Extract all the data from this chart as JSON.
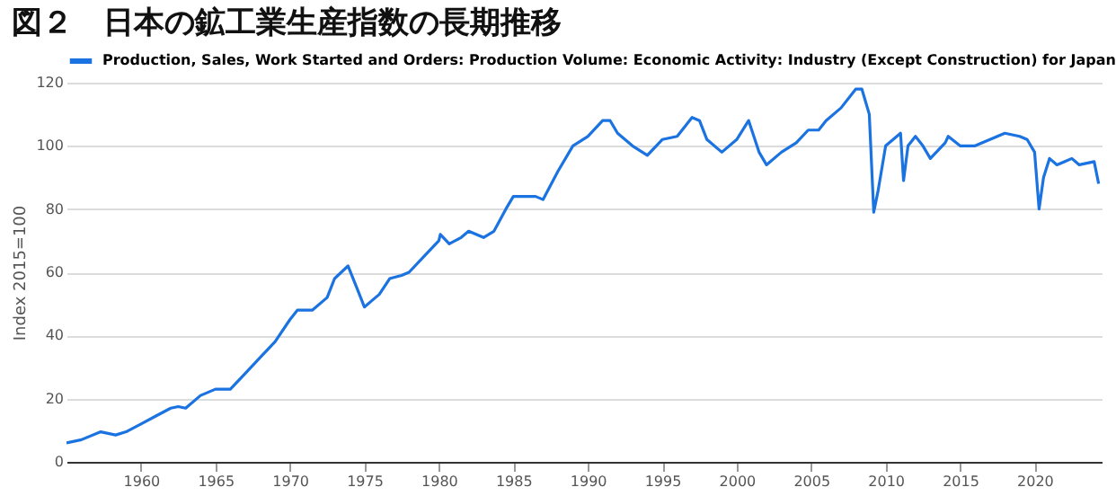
{
  "chart_data": {
    "type": "line",
    "title": "図２　日本の鉱工業生産指数の長期推移",
    "ylabel": "Index 2015=100",
    "legend": "top left",
    "grid": "y",
    "xlim": [
      1955,
      2024.5
    ],
    "xticks": [
      1960,
      1965,
      1970,
      1975,
      1980,
      1985,
      1990,
      1995,
      2000,
      2005,
      2010,
      2015,
      2020
    ],
    "ylim": [
      0,
      120
    ],
    "yticks": [
      0,
      20,
      40,
      60,
      80,
      100,
      120
    ],
    "series": [
      {
        "name": "Production, Sales, Work Started and Orders: Production Volume: Economic Activity: Industry (Except Construction) for Japan",
        "color": "#1a73e0",
        "x": [
          1955,
          1956,
          1957.3,
          1958.3,
          1959,
          1960,
          1961,
          1962,
          1962.5,
          1963,
          1964,
          1965,
          1966,
          1967,
          1968,
          1969,
          1970,
          1970.5,
          1971.5,
          1972.5,
          1973,
          1973.9,
          1974.5,
          1975,
          1975.5,
          1976,
          1976.7,
          1977.5,
          1978,
          1979,
          1980,
          1980.1,
          1980.7,
          1981.5,
          1982,
          1983,
          1983.7,
          1984.5,
          1985,
          1985.5,
          1986.5,
          1987,
          1988,
          1989,
          1990,
          1991,
          1991.5,
          1992,
          1993,
          1994,
          1995,
          1996,
          1997,
          1997.5,
          1998,
          1999,
          2000,
          2000.8,
          2001.5,
          2002,
          2003,
          2004,
          2004.8,
          2005.5,
          2006,
          2007,
          2008,
          2008.4,
          2008.9,
          2009.2,
          2009.5,
          2010,
          2010.5,
          2011,
          2011.2,
          2011.5,
          2012,
          2012.5,
          2013,
          2014,
          2014.2,
          2015,
          2016,
          2017,
          2018,
          2019,
          2019.5,
          2020,
          2020.3,
          2020.6,
          2021,
          2021.5,
          2022,
          2022.5,
          2023,
          2024,
          2024.3
        ],
        "values": [
          6,
          7,
          9.5,
          8.5,
          9.5,
          12,
          14.5,
          17,
          17.5,
          17,
          21,
          23,
          23,
          28,
          33,
          38,
          45,
          48,
          48,
          52,
          58,
          62,
          55,
          49,
          51,
          53,
          58,
          59,
          60,
          65,
          70,
          72,
          69,
          71,
          73,
          71,
          73,
          80,
          84,
          84,
          84,
          83,
          92,
          100,
          103,
          108,
          108,
          104,
          100,
          97,
          102,
          103,
          109,
          108,
          102,
          98,
          102,
          108,
          98,
          94,
          98,
          101,
          105,
          105,
          108,
          112,
          118,
          118,
          110,
          79,
          86,
          100,
          102,
          104,
          89,
          100,
          103,
          100,
          96,
          101,
          103,
          100,
          100,
          102,
          104,
          103,
          102,
          98,
          80,
          90,
          96,
          94,
          95,
          96,
          94,
          95,
          88
        ]
      }
    ]
  }
}
